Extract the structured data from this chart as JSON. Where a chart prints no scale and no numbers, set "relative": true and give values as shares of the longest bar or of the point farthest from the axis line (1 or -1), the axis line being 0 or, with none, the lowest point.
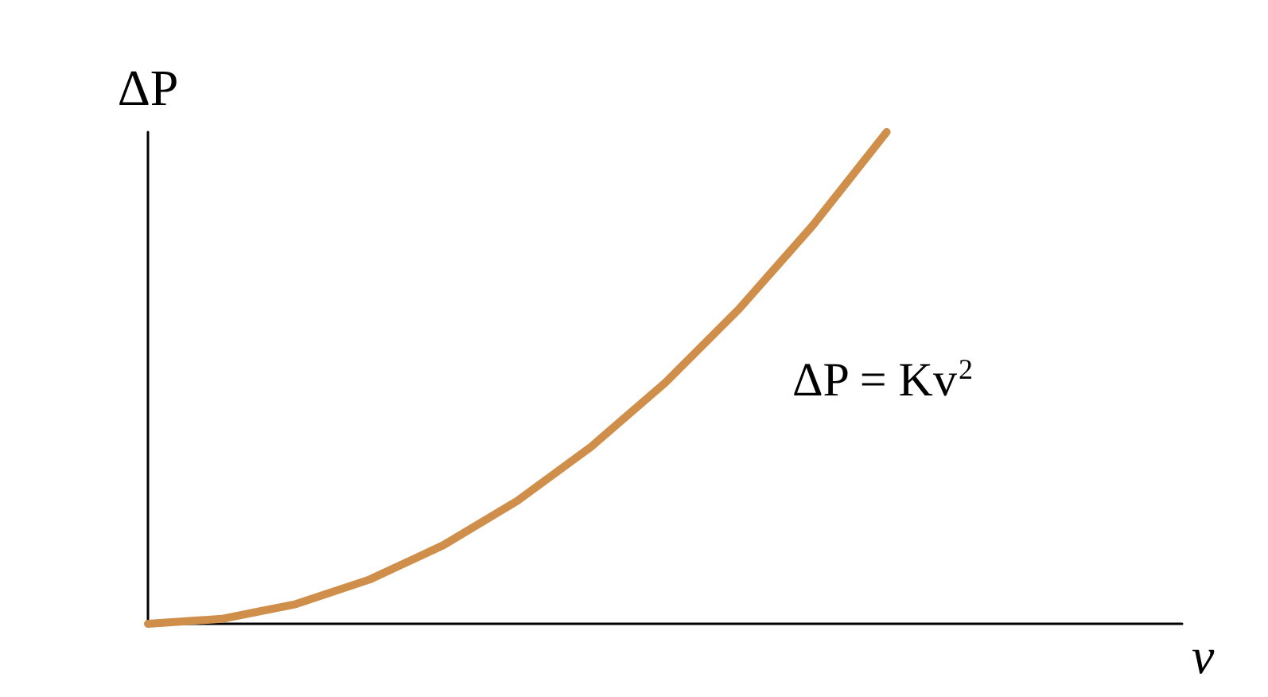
{
  "chart_data": {
    "type": "line",
    "relative": true,
    "xlabel": "v",
    "ylabel": "ΔP",
    "annotations": [
      "ΔP = Kv$^{2}$"
    ],
    "categories": [
      null,
      null,
      null,
      null,
      null,
      null,
      null,
      null,
      null,
      null,
      null,
      null,
      null,
      null,
      null
    ],
    "series": [
      {
        "color": "#cf8f4a",
        "values": [
          0,
          0.01,
          0.04,
          0.09,
          0.16,
          0.25,
          0.36,
          0.49,
          0.64,
          0.81,
          1,
          null,
          null,
          null,
          null
        ]
      }
    ],
    "grid": false,
    "marker": "none",
    "line_style": "solid"
  }
}
